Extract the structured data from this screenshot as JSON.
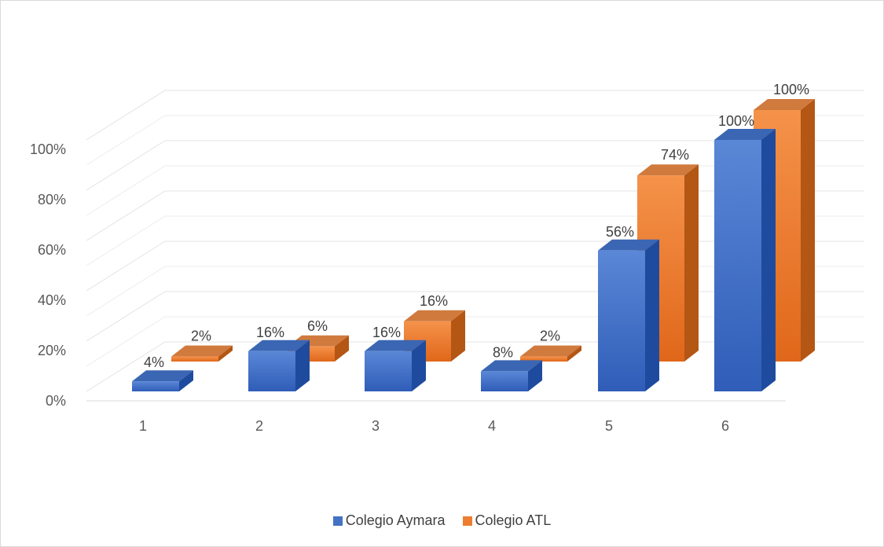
{
  "chart_data": {
    "type": "bar",
    "categories": [
      "1",
      "2",
      "3",
      "4",
      "5",
      "6"
    ],
    "series": [
      {
        "name": "Colegio Aymara",
        "values": [
          4,
          16,
          16,
          8,
          56,
          100
        ],
        "labels": [
          "4%",
          "16%",
          "16%",
          "8%",
          "56%",
          "100%"
        ],
        "color": "#4472c4"
      },
      {
        "name": "Colegio ATL",
        "values": [
          2,
          6,
          16,
          2,
          74,
          100
        ],
        "labels": [
          "2%",
          "6%",
          "16%",
          "2%",
          "74%",
          "100%"
        ],
        "color": "#ed7d31"
      }
    ],
    "y_ticks": [
      "0%",
      "20%",
      "40%",
      "60%",
      "80%",
      "100%"
    ],
    "ylim": [
      0,
      100
    ],
    "grid": true,
    "legend_position": "bottom",
    "style": "3d-clustered-bars"
  }
}
